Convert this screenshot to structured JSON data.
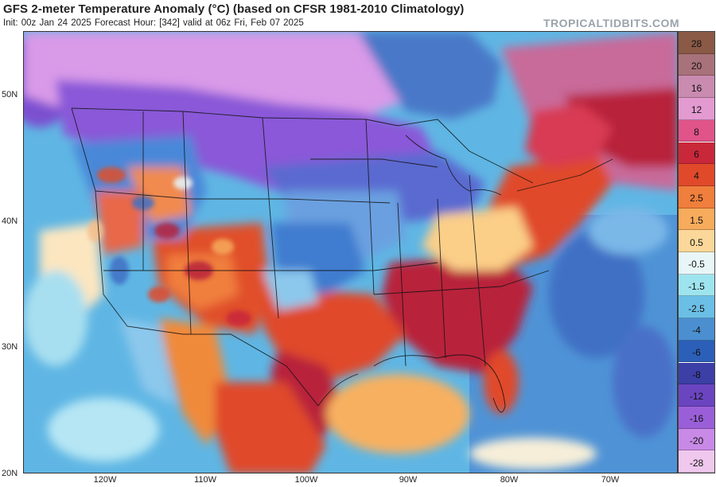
{
  "header": {
    "title": "GFS 2-meter Temperature Anomaly (°C) (based on CFSR 1981-2010 Climatology)",
    "subtitle": "Init: 00z Jan 24 2025   Forecast Hour: [342]   valid at 06z Fri, Feb 07 2025",
    "brand": "TROPICALTIDBITS.COM"
  },
  "axes": {
    "lat_labels": [
      "50N",
      "40N",
      "30N",
      "20N"
    ],
    "lon_labels": [
      "120W",
      "110W",
      "100W",
      "90W",
      "80W",
      "70W"
    ]
  },
  "colorbar": {
    "labels": [
      "28",
      "20",
      "16",
      "12",
      "8",
      "6",
      "4",
      "2.5",
      "1.5",
      "0.5",
      "-0.5",
      "-1.5",
      "-2.5",
      "-4",
      "-6",
      "-8",
      "-12",
      "-16",
      "-20",
      "-28"
    ],
    "colors": [
      "#8a5a46",
      "#a8727a",
      "#c98bb0",
      "#e39ad0",
      "#e0548a",
      "#c8283a",
      "#e04a2a",
      "#f07e3c",
      "#f7ab5c",
      "#fbd89a",
      "#e8f6f8",
      "#9ee4ef",
      "#6bbfe6",
      "#4b8fd0",
      "#2c5fb8",
      "#3c3fa6",
      "#6b45c0",
      "#9a5fd8",
      "#c88ae6",
      "#f0c8ee"
    ]
  },
  "map_colors": {
    "ocean_pacific": "#5fb6e4",
    "ocean_atlantic": "#4f93d6",
    "canada_cold": "#8a58d8",
    "canada_pink": "#d99ae8",
    "warm_deep": "#b8243a",
    "warm_orange": "#f08a3a",
    "warm_light": "#fbcf88",
    "cold_blue": "#3f7ccf",
    "neutral": "#f6eed8"
  }
}
